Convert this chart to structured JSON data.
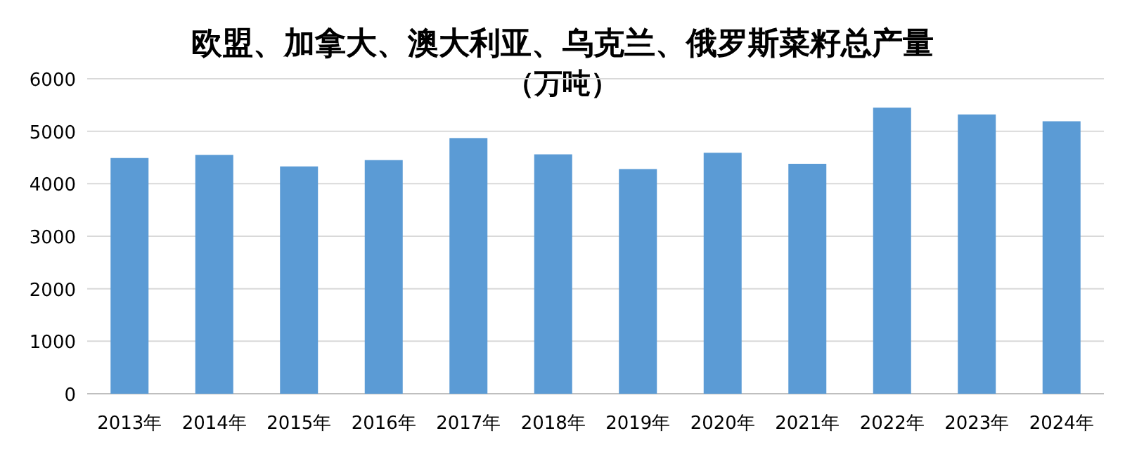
{
  "chart_data": {
    "type": "bar",
    "title": "欧盟、加拿大、澳大利亚、乌克兰、俄罗斯菜籽总产量",
    "subtitle": "（万吨）",
    "categories": [
      "2013年",
      "2014年",
      "2015年",
      "2016年",
      "2017年",
      "2018年",
      "2019年",
      "2020年",
      "2021年",
      "2022年",
      "2023年",
      "2024年"
    ],
    "values": [
      4490,
      4550,
      4330,
      4450,
      4870,
      4560,
      4280,
      4590,
      4380,
      5450,
      5320,
      5190
    ],
    "color": "#5b9bd5",
    "ylim": [
      0,
      6000
    ],
    "yticks": [
      0,
      1000,
      2000,
      3000,
      4000,
      5000,
      6000
    ],
    "grid": "y"
  }
}
